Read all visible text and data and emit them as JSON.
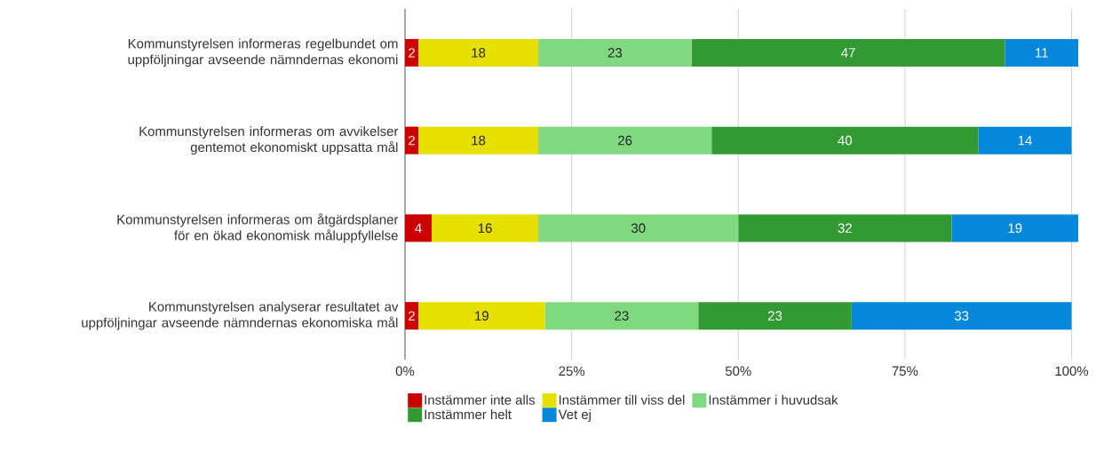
{
  "chart_data": {
    "type": "bar",
    "orientation": "horizontal",
    "stacked": true,
    "data_labels": true,
    "grid": "x",
    "legend": "bottom",
    "categories": [
      "Kommunstyrelsen informeras regelbundet om uppföljningar avseende nämndernas ekonomi",
      "Kommunstyrelsen informeras om avvikelser gentemot ekonomiskt uppsatta mål",
      "Kommunstyrelsen informeras om åtgärdsplaner för en ökad ekonomisk måluppfyllelse",
      "Kommunstyrelsen analyserar resultatet av uppföljningar avseende nämndernas ekonomiska mål"
    ],
    "xlim": [
      0,
      101
    ],
    "xticks": [
      {
        "value": 0,
        "label": "0%"
      },
      {
        "value": 25,
        "label": "25%"
      },
      {
        "value": 50,
        "label": "50%"
      },
      {
        "value": 75,
        "label": "75%"
      },
      {
        "value": 100,
        "label": "100%"
      }
    ],
    "series": [
      {
        "name": "Instämmer inte alls",
        "color": "#cc0000",
        "values": [
          2,
          2,
          4,
          2
        ]
      },
      {
        "name": "Instämmer till viss del",
        "color": "#e5e000",
        "values": [
          18,
          18,
          16,
          19
        ]
      },
      {
        "name": "Instämmer i huvudsak",
        "color": "#80d880",
        "values": [
          23,
          26,
          30,
          23
        ]
      },
      {
        "name": "Instämmer helt",
        "color": "#339933",
        "values": [
          47,
          40,
          32,
          23
        ]
      },
      {
        "name": "Vet ej",
        "color": "#0787d9",
        "values": [
          11,
          14,
          19,
          33
        ]
      }
    ]
  }
}
